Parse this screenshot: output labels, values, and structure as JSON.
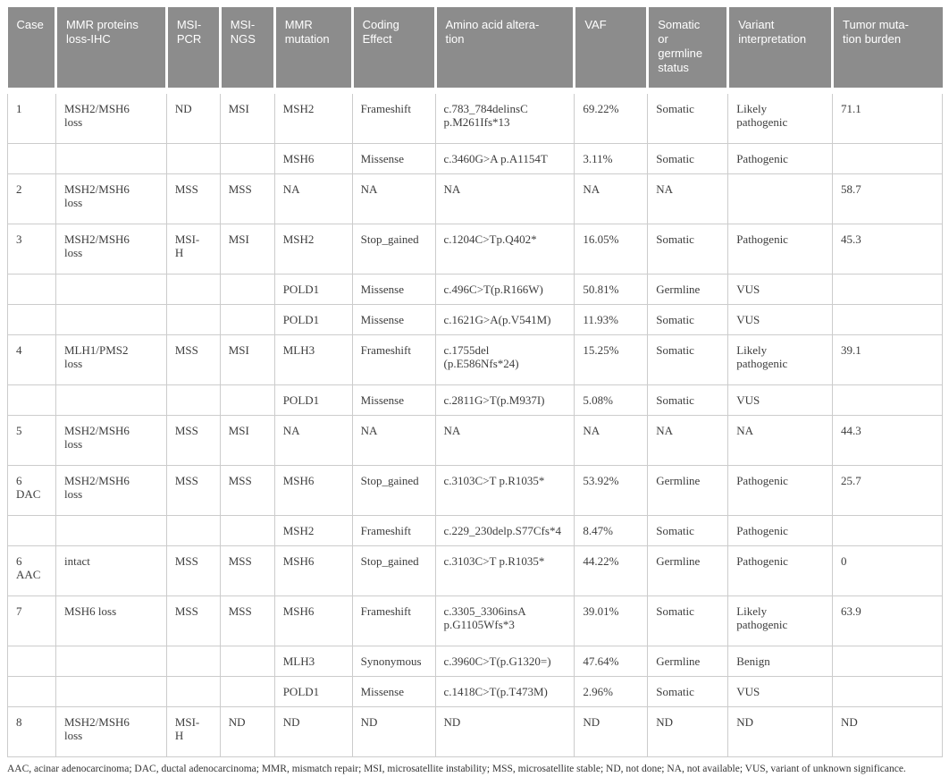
{
  "table": {
    "columns": [
      {
        "label": "Case"
      },
      {
        "label": "MMR proteins\nloss-IHC"
      },
      {
        "label": "MSI-\nPCR"
      },
      {
        "label": "MSI-\nNGS"
      },
      {
        "label": "MMR\nmutation"
      },
      {
        "label": "Coding\nEffect"
      },
      {
        "label": "Amino acid altera-\ntion"
      },
      {
        "label": "VAF"
      },
      {
        "label": "Somatic\nor\ngermline\nstatus"
      },
      {
        "label": "Variant\ninterpretation"
      },
      {
        "label": "Tumor muta-\ntion burden"
      }
    ],
    "rows": [
      {
        "cells": [
          "1",
          "MSH2/MSH6\nloss",
          "ND",
          "MSI",
          "MSH2",
          "Frameshift",
          "c.783_784delinsC\np.M261Ifs*13",
          "69.22%",
          "Somatic",
          "Likely\npathogenic",
          "71.1"
        ]
      },
      {
        "cells": [
          "",
          "",
          "",
          "",
          "MSH6",
          "Missense",
          "c.3460G>A p.A1154T",
          "3.11%",
          "Somatic",
          "Pathogenic",
          ""
        ]
      },
      {
        "cells": [
          "2",
          "MSH2/MSH6\nloss",
          "MSS",
          "MSS",
          "NA",
          "NA",
          "NA",
          "NA",
          "NA",
          "",
          "58.7"
        ]
      },
      {
        "cells": [
          "3",
          "MSH2/MSH6\nloss",
          "MSI-\nH",
          "MSI",
          "MSH2",
          "Stop_gained",
          "c.1204C>Tp.Q402*",
          "16.05%",
          "Somatic",
          "Pathogenic",
          "45.3"
        ]
      },
      {
        "cells": [
          "",
          "",
          "",
          "",
          "POLD1",
          "Missense",
          "c.496C>T(p.R166W)",
          "50.81%",
          "Germline",
          "VUS",
          ""
        ]
      },
      {
        "cells": [
          "",
          "",
          "",
          "",
          "POLD1",
          "Missense",
          "c.1621G>A(p.V541M)",
          "11.93%",
          "Somatic",
          "VUS",
          ""
        ]
      },
      {
        "cells": [
          "4",
          "MLH1/PMS2\nloss",
          "MSS",
          "MSI",
          "MLH3",
          "Frameshift",
          "c.1755del\n(p.E586Nfs*24)",
          "15.25%",
          "Somatic",
          "Likely\npathogenic",
          "39.1"
        ]
      },
      {
        "cells": [
          "",
          "",
          "",
          "",
          "POLD1",
          "Missense",
          "c.2811G>T(p.M937I)",
          "5.08%",
          "Somatic",
          "VUS",
          ""
        ]
      },
      {
        "cells": [
          "5",
          "MSH2/MSH6\nloss",
          "MSS",
          "MSI",
          "NA",
          "NA",
          "NA",
          "NA",
          "NA",
          "NA",
          "44.3"
        ]
      },
      {
        "cells": [
          "6\nDAC",
          "MSH2/MSH6\nloss",
          "MSS",
          "MSS",
          "MSH6",
          "Stop_gained",
          "c.3103C>T p.R1035*",
          "53.92%",
          "Germline",
          "Pathogenic",
          "25.7"
        ]
      },
      {
        "cells": [
          "",
          "",
          "",
          "",
          "MSH2",
          "Frameshift",
          "c.229_230delp.S77Cfs*4",
          "8.47%",
          "Somatic",
          "Pathogenic",
          ""
        ]
      },
      {
        "cells": [
          "6\nAAC",
          "intact",
          "MSS",
          "MSS",
          "MSH6",
          "Stop_gained",
          "c.3103C>T p.R1035*",
          "44.22%",
          "Germline",
          "Pathogenic",
          "0"
        ]
      },
      {
        "cells": [
          "7",
          "MSH6 loss",
          "MSS",
          "MSS",
          "MSH6",
          "Frameshift",
          "c.3305_3306insA\np.G1105Wfs*3",
          "39.01%",
          "Somatic",
          "Likely\npathogenic",
          "63.9"
        ]
      },
      {
        "cells": [
          "",
          "",
          "",
          "",
          "MLH3",
          "Synonymous",
          "c.3960C>T(p.G1320=)",
          "47.64%",
          "Germline",
          "Benign",
          ""
        ]
      },
      {
        "cells": [
          "",
          "",
          "",
          "",
          "POLD1",
          "Missense",
          "c.1418C>T(p.T473M)",
          "2.96%",
          "Somatic",
          "VUS",
          ""
        ]
      },
      {
        "cells": [
          "8",
          "MSH2/MSH6\nloss",
          "MSI-\nH",
          "ND",
          "ND",
          "ND",
          "ND",
          "ND",
          "ND",
          "ND",
          "ND"
        ]
      }
    ]
  },
  "footnote": "AAC, acinar adenocarcinoma; DAC, ductal adenocarcinoma; MMR, mismatch repair; MSI, microsatellite instability; MSS, microsatellite stable; ND, not done; NA, not available; VUS, variant of unknown significance.",
  "colors": {
    "header_bg": "#8c8c8c",
    "header_text": "#ffffff",
    "cell_border": "#cccccc",
    "body_text": "#3d3d3d"
  }
}
